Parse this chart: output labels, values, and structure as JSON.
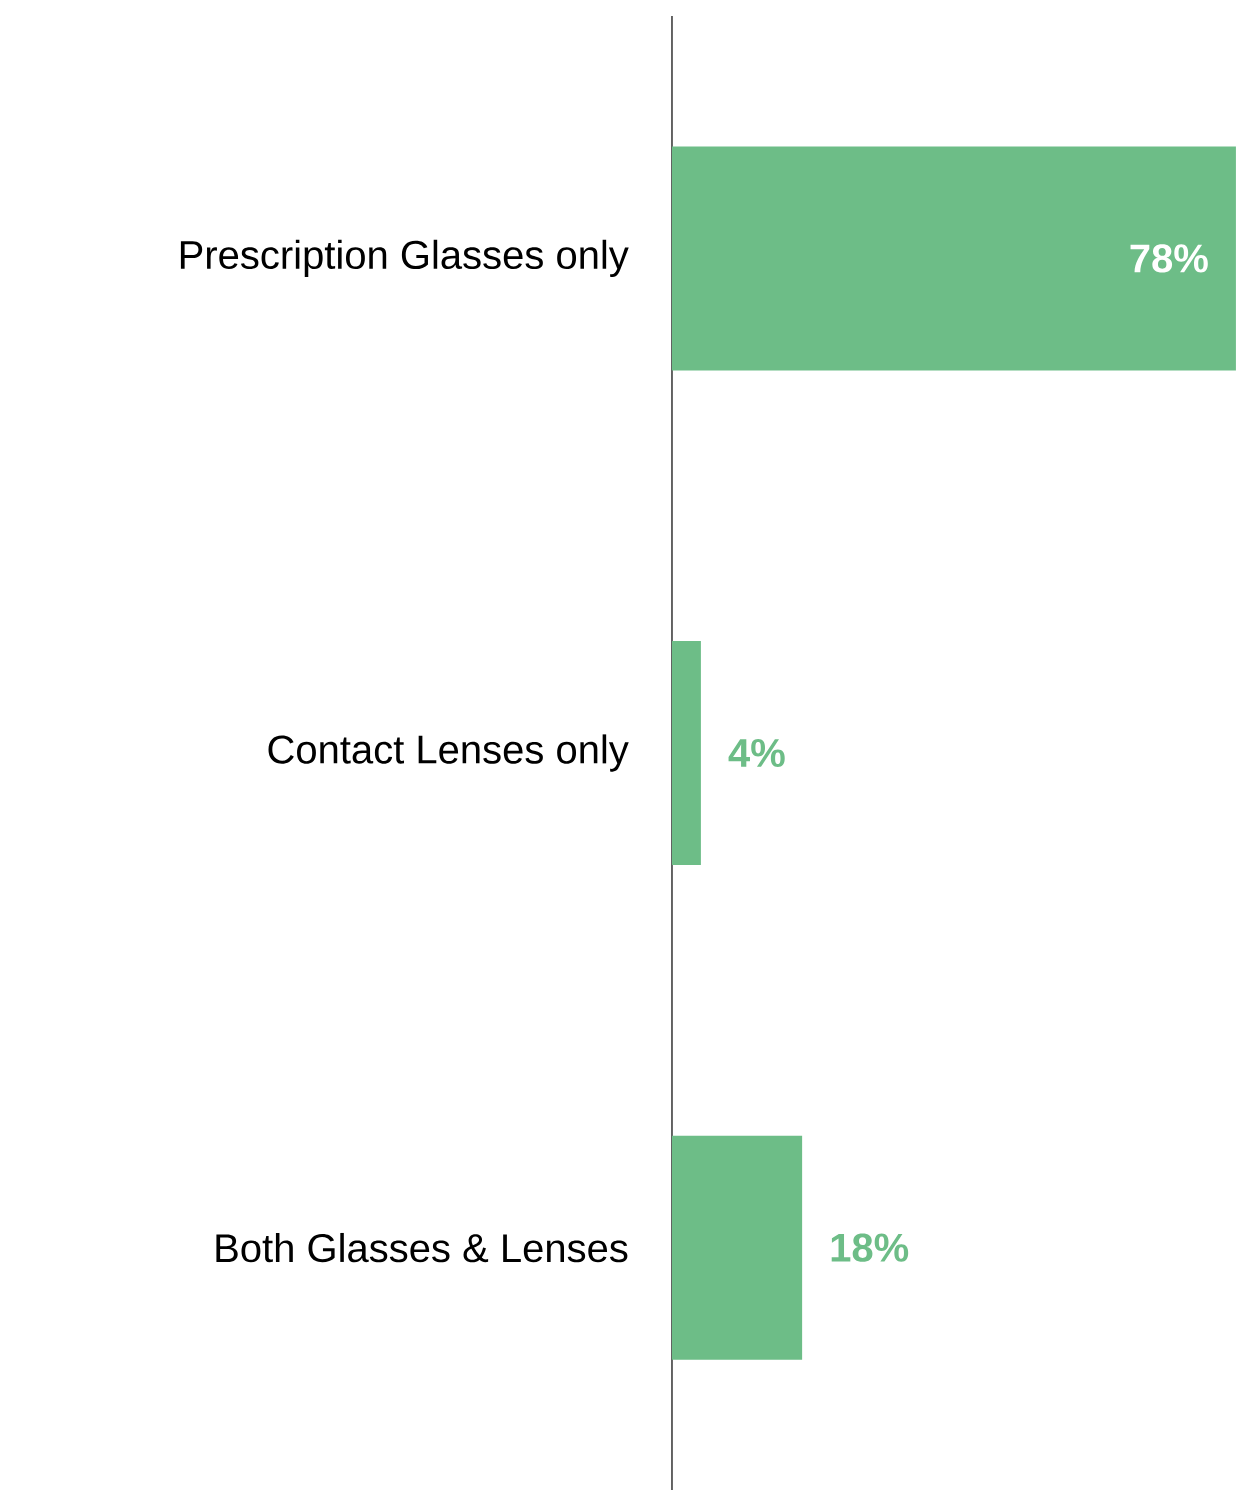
{
  "chart_data": {
    "type": "bar",
    "orientation": "horizontal",
    "categories": [
      "Prescription Glasses only",
      "Contact Lenses only",
      "Both Glasses & Lenses"
    ],
    "values": [
      78,
      4,
      18
    ],
    "value_labels": [
      "78%",
      "4%",
      "18%"
    ],
    "color": "#6dbd87",
    "xlim": [
      0,
      78
    ]
  }
}
